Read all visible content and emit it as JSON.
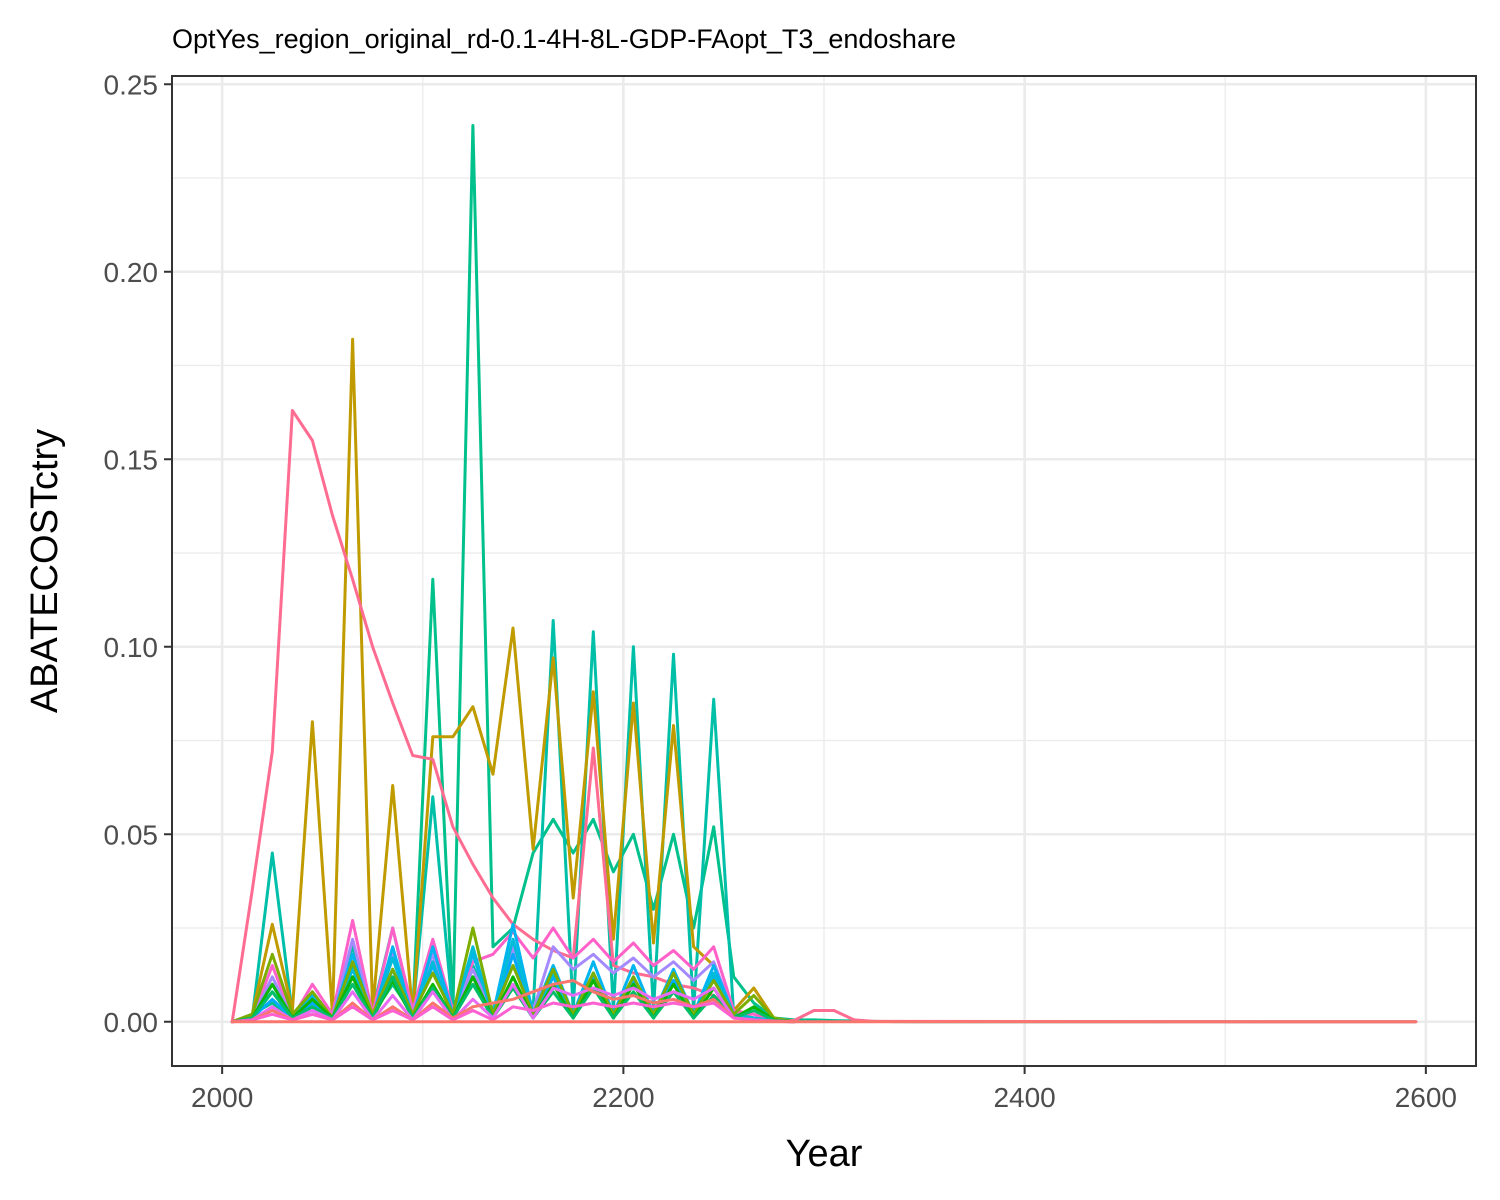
{
  "chart_data": {
    "type": "line",
    "title": "OptYes_region_original_rd-0.1-4H-8L-GDP-FAopt_T3_endoshare",
    "xlabel": "Year",
    "ylabel": "ABATECOSTctry",
    "xlim": [
      1975,
      2625
    ],
    "ylim": [
      -0.0118,
      0.2522
    ],
    "x_ticks": [
      2000,
      2200,
      2400,
      2600
    ],
    "x_tick_labels": [
      "2000",
      "2200",
      "2400",
      "2600"
    ],
    "y_ticks": [
      0.0,
      0.05,
      0.1,
      0.15,
      0.2,
      0.25
    ],
    "y_tick_labels": [
      "0.00",
      "0.05",
      "0.10",
      "0.15",
      "0.20",
      "0.25"
    ],
    "grid": true,
    "legend": "none",
    "series": [
      {
        "color": "#00C08B",
        "x": [
          2005,
          2015,
          2025,
          2035,
          2045,
          2055,
          2065,
          2075,
          2085,
          2095,
          2105,
          2115,
          2125,
          2135,
          2145,
          2155,
          2165,
          2175,
          2185,
          2195,
          2205,
          2215,
          2225,
          2235,
          2245,
          2255,
          2265,
          2275,
          2285,
          2295,
          2305,
          2315,
          2325,
          2335,
          2345,
          2595
        ],
        "y": [
          0,
          0.002,
          0.005,
          0.001,
          0.004,
          0.001,
          0.015,
          0.002,
          0.01,
          0.002,
          0.118,
          0.003,
          0.239,
          0.02,
          0.025,
          0.045,
          0.054,
          0.045,
          0.054,
          0.04,
          0.05,
          0.03,
          0.05,
          0.025,
          0.052,
          0.012,
          0.005,
          0.001,
          0.0005,
          0.0005,
          0.0003,
          0.0002,
          0.0001,
          5e-05,
          0,
          0
        ]
      },
      {
        "color": "#00BFA8",
        "x": [
          2005,
          2015,
          2025,
          2035,
          2045,
          2055,
          2065,
          2075,
          2085,
          2095,
          2105,
          2115,
          2125,
          2135,
          2145,
          2155,
          2165,
          2175,
          2185,
          2195,
          2205,
          2215,
          2225,
          2235,
          2245,
          2255,
          2265,
          2275,
          2285
        ],
        "y": [
          0,
          0.001,
          0.045,
          0.002,
          0.005,
          0.002,
          0.02,
          0.003,
          0.025,
          0.002,
          0.06,
          0.002,
          0.015,
          0.003,
          0.02,
          0.003,
          0.107,
          0.003,
          0.104,
          0.003,
          0.1,
          0.003,
          0.098,
          0.003,
          0.086,
          0.002,
          0.001,
          0.0003,
          0
        ]
      },
      {
        "color": "#C09B00",
        "x": [
          2005,
          2015,
          2025,
          2035,
          2045,
          2055,
          2065,
          2075,
          2085,
          2095,
          2105,
          2115,
          2125,
          2135,
          2145,
          2155,
          2165,
          2175,
          2185,
          2195,
          2205,
          2215,
          2225,
          2235,
          2245,
          2255,
          2265,
          2275,
          2285
        ],
        "y": [
          0,
          0.002,
          0.026,
          0.003,
          0.08,
          0.002,
          0.182,
          0.003,
          0.063,
          0.002,
          0.076,
          0.076,
          0.084,
          0.066,
          0.105,
          0.046,
          0.097,
          0.033,
          0.088,
          0.022,
          0.085,
          0.021,
          0.079,
          0.02,
          0.015,
          0.003,
          0.009,
          0.001,
          0
        ]
      },
      {
        "color": "#FF6C91",
        "x": [
          2005,
          2015,
          2025,
          2035,
          2045,
          2055,
          2065,
          2075,
          2085,
          2095,
          2105,
          2115,
          2125,
          2135,
          2145,
          2155,
          2165,
          2175,
          2185,
          2195,
          2205,
          2215,
          2225,
          2235,
          2245,
          2255,
          2265,
          2275,
          2285,
          2295,
          2305,
          2315,
          2325,
          2595
        ],
        "y": [
          0,
          0.035,
          0.072,
          0.163,
          0.155,
          0.135,
          0.118,
          0.1,
          0.085,
          0.071,
          0.07,
          0.052,
          0.042,
          0.033,
          0.026,
          0.022,
          0.019,
          0.017,
          0.073,
          0.015,
          0.013,
          0.012,
          0.01,
          0.009,
          0.007,
          0.003,
          0.001,
          0.0005,
          0.0003,
          0.003,
          0.003,
          0.0005,
          0.0001,
          0
        ]
      },
      {
        "color": "#FF61C9",
        "x": [
          2005,
          2015,
          2025,
          2035,
          2045,
          2055,
          2065,
          2075,
          2085,
          2095,
          2105,
          2115,
          2125,
          2135,
          2145,
          2155,
          2165,
          2175,
          2185,
          2195,
          2205,
          2215,
          2225,
          2235,
          2245,
          2255,
          2265,
          2275,
          2285
        ],
        "y": [
          0,
          0.001,
          0.015,
          0.001,
          0.01,
          0.002,
          0.027,
          0.002,
          0.025,
          0.003,
          0.022,
          0.003,
          0.016,
          0.018,
          0.024,
          0.017,
          0.025,
          0.017,
          0.022,
          0.016,
          0.021,
          0.015,
          0.019,
          0.014,
          0.02,
          0.003,
          0.002,
          0.0005,
          0
        ]
      },
      {
        "color": "#A58AFF",
        "x": [
          2005,
          2015,
          2025,
          2035,
          2045,
          2055,
          2065,
          2075,
          2085,
          2095,
          2105,
          2115,
          2125,
          2135,
          2145,
          2155,
          2165,
          2175,
          2185,
          2195,
          2205,
          2215,
          2225,
          2235,
          2245,
          2255,
          2265,
          2275,
          2285
        ],
        "y": [
          0,
          0.001,
          0.012,
          0.001,
          0.008,
          0.001,
          0.022,
          0.001,
          0.018,
          0.002,
          0.018,
          0.002,
          0.014,
          0.002,
          0.02,
          0.003,
          0.02,
          0.014,
          0.018,
          0.013,
          0.017,
          0.012,
          0.016,
          0.011,
          0.016,
          0.002,
          0.001,
          0.0003,
          0
        ]
      },
      {
        "color": "#00B4F0",
        "x": [
          2005,
          2015,
          2025,
          2035,
          2045,
          2055,
          2065,
          2075,
          2085,
          2095,
          2105,
          2115,
          2125,
          2135,
          2145,
          2155,
          2165,
          2175,
          2185,
          2195,
          2205,
          2215,
          2225,
          2235,
          2245,
          2255,
          2265,
          2275,
          2285
        ],
        "y": [
          0,
          0.001,
          0.01,
          0.001,
          0.007,
          0.001,
          0.018,
          0.001,
          0.02,
          0.001,
          0.02,
          0.002,
          0.018,
          0.002,
          0.026,
          0.002,
          0.015,
          0.002,
          0.016,
          0.002,
          0.015,
          0.002,
          0.014,
          0.002,
          0.015,
          0.002,
          0.001,
          0.0003,
          0
        ]
      },
      {
        "color": "#00A9FF",
        "x": [
          2005,
          2015,
          2025,
          2035,
          2045,
          2055,
          2065,
          2075,
          2085,
          2095,
          2105,
          2115,
          2125,
          2135,
          2145,
          2155,
          2165,
          2175,
          2185,
          2195,
          2205,
          2215,
          2225,
          2235,
          2245,
          2255,
          2265,
          2275,
          2285
        ],
        "y": [
          0,
          0.001,
          0.006,
          0.001,
          0.005,
          0.001,
          0.012,
          0.001,
          0.014,
          0.001,
          0.015,
          0.001,
          0.012,
          0.001,
          0.018,
          0.001,
          0.012,
          0.001,
          0.012,
          0.001,
          0.011,
          0.001,
          0.011,
          0.001,
          0.012,
          0.001,
          0.001,
          0.0002,
          0
        ]
      },
      {
        "color": "#00BCD8",
        "x": [
          2005,
          2015,
          2025,
          2035,
          2045,
          2055,
          2065,
          2075,
          2085,
          2095,
          2105,
          2115,
          2125,
          2135,
          2145,
          2155,
          2165,
          2175,
          2185,
          2195,
          2205,
          2215,
          2225,
          2235,
          2245,
          2255,
          2265,
          2275,
          2285
        ],
        "y": [
          0,
          0.001,
          0.008,
          0.001,
          0.006,
          0.001,
          0.014,
          0.001,
          0.017,
          0.001,
          0.016,
          0.001,
          0.02,
          0.001,
          0.022,
          0.001,
          0.013,
          0.001,
          0.013,
          0.001,
          0.012,
          0.001,
          0.013,
          0.001,
          0.013,
          0.002,
          0.001,
          0.0002,
          0
        ]
      },
      {
        "color": "#7CAE00",
        "x": [
          2005,
          2015,
          2025,
          2035,
          2045,
          2055,
          2065,
          2075,
          2085,
          2095,
          2105,
          2115,
          2125,
          2135,
          2145,
          2155,
          2165,
          2175,
          2185,
          2195,
          2205,
          2215,
          2225,
          2235,
          2245,
          2255,
          2265,
          2275,
          2285
        ],
        "y": [
          0,
          0.002,
          0.018,
          0.002,
          0.008,
          0.001,
          0.016,
          0.002,
          0.014,
          0.002,
          0.013,
          0.002,
          0.025,
          0.002,
          0.015,
          0.002,
          0.014,
          0.002,
          0.013,
          0.002,
          0.012,
          0.002,
          0.013,
          0.002,
          0.011,
          0.002,
          0.007,
          0.001,
          0
        ]
      },
      {
        "color": "#0CB702",
        "x": [
          2005,
          2015,
          2025,
          2035,
          2045,
          2055,
          2065,
          2075,
          2085,
          2095,
          2105,
          2115,
          2125,
          2135,
          2145,
          2155,
          2165,
          2175,
          2185,
          2195,
          2205,
          2215,
          2225,
          2235,
          2245,
          2255,
          2265,
          2275,
          2285
        ],
        "y": [
          0,
          0.001,
          0.01,
          0.001,
          0.006,
          0.001,
          0.012,
          0.001,
          0.011,
          0.001,
          0.01,
          0.001,
          0.012,
          0.001,
          0.012,
          0.001,
          0.01,
          0.001,
          0.011,
          0.001,
          0.01,
          0.001,
          0.01,
          0.001,
          0.009,
          0.001,
          0.004,
          0.0005,
          0
        ]
      },
      {
        "color": "#00BE67",
        "x": [
          2005,
          2015,
          2025,
          2035,
          2045,
          2055,
          2065,
          2075,
          2085,
          2095,
          2105,
          2115,
          2125,
          2135,
          2145,
          2155,
          2165,
          2175,
          2185,
          2195,
          2205,
          2215,
          2225,
          2235,
          2245,
          2255,
          2265,
          2275,
          2285
        ],
        "y": [
          0,
          0.001,
          0.008,
          0.001,
          0.004,
          0.001,
          0.01,
          0.001,
          0.012,
          0.001,
          0.009,
          0.001,
          0.01,
          0.001,
          0.009,
          0.001,
          0.008,
          0.001,
          0.009,
          0.001,
          0.008,
          0.001,
          0.008,
          0.001,
          0.007,
          0.001,
          0.003,
          0.0004,
          0
        ]
      },
      {
        "color": "#E76BF3",
        "x": [
          2005,
          2015,
          2025,
          2035,
          2045,
          2055,
          2065,
          2075,
          2085,
          2095,
          2105,
          2115,
          2125,
          2135,
          2145,
          2155,
          2165,
          2175,
          2185,
          2195,
          2205,
          2215,
          2225,
          2235,
          2245,
          2255,
          2265,
          2275,
          2285
        ],
        "y": [
          0,
          0.0005,
          0.004,
          0.0005,
          0.003,
          0.0005,
          0.008,
          0.0005,
          0.007,
          0.0005,
          0.008,
          0.0005,
          0.006,
          0.001,
          0.01,
          0.001,
          0.009,
          0.007,
          0.009,
          0.007,
          0.009,
          0.006,
          0.008,
          0.006,
          0.009,
          0.001,
          0.0005,
          0.0002,
          0
        ]
      },
      {
        "color": "#F8766D",
        "x": [
          2005,
          2015,
          2025,
          2035,
          2045,
          2055,
          2065,
          2075,
          2085,
          2095,
          2105,
          2115,
          2125,
          2135,
          2145,
          2155,
          2165,
          2175,
          2185,
          2195,
          2205,
          2215,
          2225,
          2235,
          2245,
          2255,
          2265,
          2275,
          2285
        ],
        "y": [
          0,
          0.0005,
          0.003,
          0.0005,
          0.002,
          0.0005,
          0.005,
          0.0005,
          0.004,
          0.0005,
          0.005,
          0.001,
          0.004,
          0.005,
          0.006,
          0.008,
          0.01,
          0.011,
          0.008,
          0.006,
          0.007,
          0.005,
          0.006,
          0.004,
          0.006,
          0.001,
          0.0005,
          0.0002,
          0
        ]
      },
      {
        "color": "#FD61D1",
        "x": [
          2005,
          2015,
          2025,
          2035,
          2045,
          2055,
          2065,
          2075,
          2085,
          2095,
          2105,
          2115,
          2125,
          2135,
          2145,
          2155,
          2165,
          2175,
          2185,
          2195,
          2205,
          2215,
          2225,
          2235,
          2245,
          2255,
          2265,
          2275,
          2285
        ],
        "y": [
          0,
          0.0005,
          0.002,
          0.0005,
          0.002,
          0.0005,
          0.004,
          0.0005,
          0.003,
          0.0005,
          0.004,
          0.0005,
          0.003,
          0.0005,
          0.004,
          0.003,
          0.005,
          0.004,
          0.005,
          0.004,
          0.005,
          0.004,
          0.005,
          0.004,
          0.005,
          0.001,
          0.0005,
          0.0001,
          0
        ]
      },
      {
        "color": "#F8766D",
        "x": [
          2005,
          2105,
          2205,
          2305,
          2405,
          2505,
          2595
        ],
        "y": [
          0,
          0,
          0,
          0,
          0,
          0,
          0
        ]
      }
    ]
  }
}
